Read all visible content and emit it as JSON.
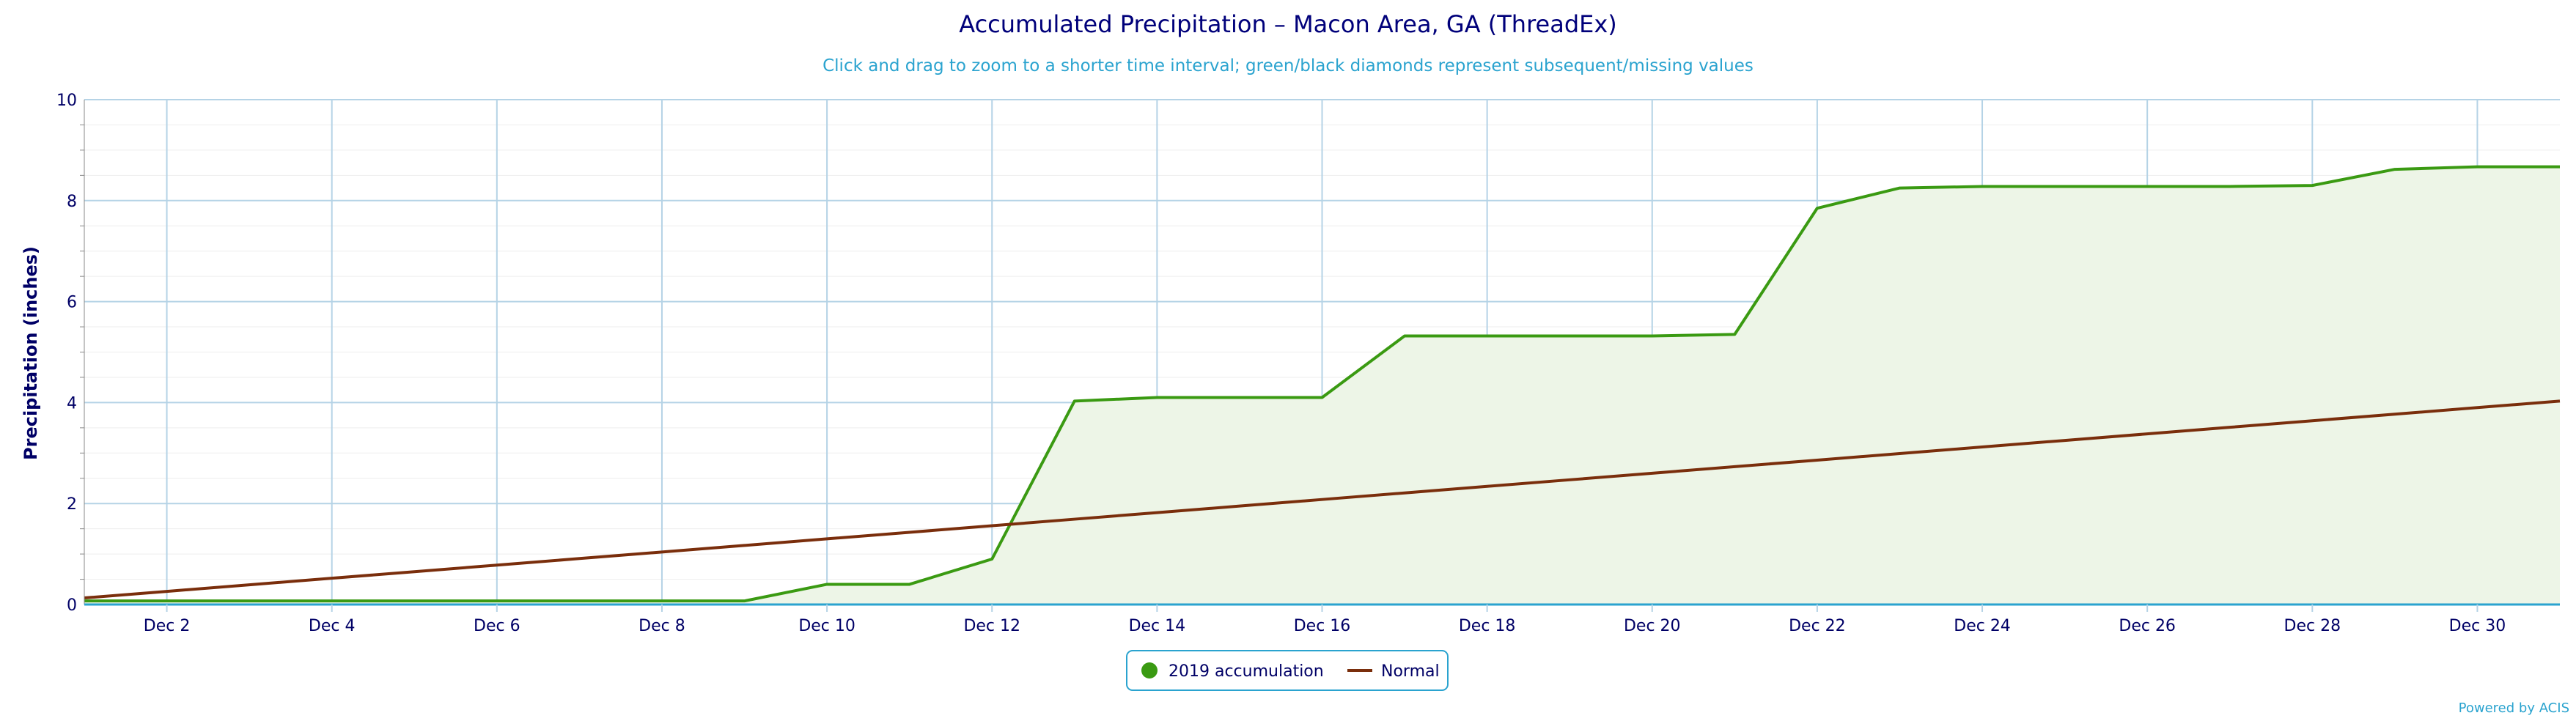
{
  "colors": {
    "accumulation": "#3a9a12",
    "accumulation_fill": "#edf5e7",
    "normal": "#7a2e0c",
    "grid": "#b5d3e6",
    "minor_grid": "#eeeeee",
    "text": "#000066",
    "subtitle": "#2aa3cf",
    "legend_border": "#2aa3cf"
  },
  "chart_data": {
    "type": "area",
    "title": "Accumulated Precipitation – Macon Area, GA (ThreadEx)",
    "subtitle": "Click and drag to zoom to a shorter time interval; green/black diamonds represent subsequent/missing values",
    "ylabel": "Precipitation (inches)",
    "xlabel": "",
    "ylim": [
      0,
      10
    ],
    "yticks": [
      "0",
      "2",
      "4",
      "6",
      "8",
      "10"
    ],
    "xlim": [
      "2019-12-01",
      "2019-12-31"
    ],
    "xtick_labels": [
      "Dec 2",
      "Dec 4",
      "Dec 6",
      "Dec 8",
      "Dec 10",
      "Dec 12",
      "Dec 14",
      "Dec 16",
      "Dec 18",
      "Dec 20",
      "Dec 22",
      "Dec 24",
      "Dec 26",
      "Dec 28",
      "Dec 30"
    ],
    "grid": true,
    "legend_position": "bottom-center",
    "x": [
      "2019-12-01",
      "2019-12-02",
      "2019-12-03",
      "2019-12-04",
      "2019-12-05",
      "2019-12-06",
      "2019-12-07",
      "2019-12-08",
      "2019-12-09",
      "2019-12-10",
      "2019-12-11",
      "2019-12-12",
      "2019-12-13",
      "2019-12-14",
      "2019-12-15",
      "2019-12-16",
      "2019-12-17",
      "2019-12-18",
      "2019-12-19",
      "2019-12-20",
      "2019-12-21",
      "2019-12-22",
      "2019-12-23",
      "2019-12-24",
      "2019-12-25",
      "2019-12-26",
      "2019-12-27",
      "2019-12-28",
      "2019-12-29",
      "2019-12-30",
      "2019-12-31"
    ],
    "series": [
      {
        "name": "2019 accumulation",
        "type": "area",
        "values": [
          0.07,
          0.07,
          0.07,
          0.07,
          0.07,
          0.07,
          0.07,
          0.07,
          0.07,
          0.4,
          0.4,
          0.9,
          4.03,
          4.1,
          4.1,
          4.1,
          5.32,
          5.32,
          5.32,
          5.32,
          5.35,
          7.85,
          8.25,
          8.28,
          8.28,
          8.28,
          8.28,
          8.3,
          8.62,
          8.67,
          8.67
        ]
      },
      {
        "name": "Normal",
        "type": "line",
        "values": [
          0.13,
          0.26,
          0.39,
          0.52,
          0.65,
          0.78,
          0.91,
          1.04,
          1.17,
          1.3,
          1.43,
          1.56,
          1.69,
          1.82,
          1.95,
          2.08,
          2.21,
          2.34,
          2.47,
          2.6,
          2.73,
          2.86,
          2.99,
          3.12,
          3.25,
          3.38,
          3.51,
          3.64,
          3.77,
          3.9,
          4.03
        ]
      }
    ]
  },
  "credits": "Powered by ACIS"
}
